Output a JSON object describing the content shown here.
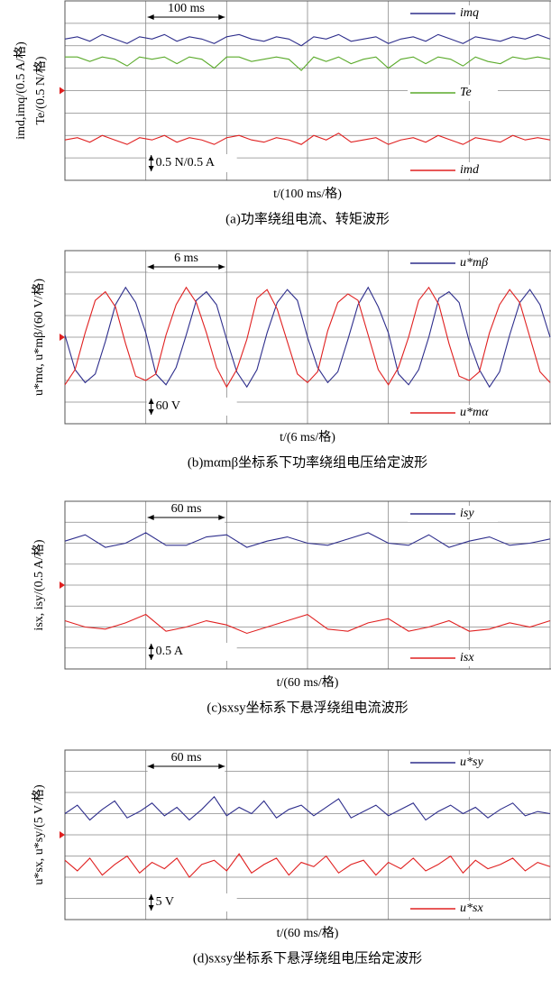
{
  "chart_data": [
    {
      "type": "line",
      "ylabel": [
        "imd,imq/(0.5 A/格)",
        "Te/(0.5 N/格)"
      ],
      "xlabel": "t/(100 ms/格)",
      "caption": "(a)功率绕组电流、转矩波形",
      "time_scale": "100 ms",
      "amplitude_scale": "0.5 N/0.5 A",
      "xlim": [
        0,
        6
      ],
      "ylim": [
        0,
        8
      ],
      "xticks": [
        0,
        1,
        2,
        3,
        4,
        5,
        6
      ],
      "yticks": [
        0,
        1,
        2,
        3,
        4,
        5,
        6,
        7,
        8
      ],
      "grid": true,
      "series": [
        {
          "name": "imq",
          "color": "#2e2e8c",
          "values": [
            6.3,
            6.4,
            6.2,
            6.5,
            6.3,
            6.1,
            6.4,
            6.3,
            6.5,
            6.2,
            6.4,
            6.3,
            6.1,
            6.4,
            6.5,
            6.3,
            6.2,
            6.4,
            6.3,
            6.0,
            6.4,
            6.3,
            6.5,
            6.2,
            6.3,
            6.4,
            6.1,
            6.3,
            6.4,
            6.2,
            6.5,
            6.3,
            6.1,
            6.4,
            6.3,
            6.2,
            6.4,
            6.3,
            6.5,
            6.3
          ]
        },
        {
          "name": "Te",
          "color": "#5aaa2a",
          "values": [
            5.5,
            5.5,
            5.3,
            5.5,
            5.4,
            5.1,
            5.5,
            5.4,
            5.5,
            5.2,
            5.5,
            5.4,
            5.0,
            5.5,
            5.5,
            5.3,
            5.4,
            5.5,
            5.4,
            4.9,
            5.5,
            5.3,
            5.5,
            5.2,
            5.4,
            5.5,
            5.0,
            5.4,
            5.5,
            5.2,
            5.5,
            5.4,
            5.1,
            5.5,
            5.3,
            5.2,
            5.5,
            5.4,
            5.5,
            5.4
          ]
        },
        {
          "name": "imd",
          "color": "#e02020",
          "values": [
            1.8,
            1.9,
            1.7,
            2.0,
            1.8,
            1.6,
            1.9,
            1.8,
            2.0,
            1.7,
            1.9,
            1.8,
            1.6,
            1.9,
            2.0,
            1.8,
            1.7,
            1.9,
            1.8,
            1.6,
            2.0,
            1.8,
            2.1,
            1.7,
            1.8,
            1.9,
            1.6,
            1.8,
            1.9,
            1.7,
            2.0,
            1.8,
            1.6,
            1.9,
            1.8,
            1.7,
            2.0,
            1.8,
            1.9,
            1.8
          ]
        }
      ]
    },
    {
      "type": "line",
      "ylabel": [
        "u*mα, u*mβ/(60 V/格)"
      ],
      "xlabel": "t/(6 ms/格)",
      "caption": "(b)mαmβ坐标系下功率绕组电压给定波形",
      "time_scale": "6 ms",
      "amplitude_scale": "60 V",
      "xlim": [
        0,
        6
      ],
      "ylim": [
        -4,
        4
      ],
      "xticks": [
        0,
        1,
        2,
        3,
        4,
        5,
        6
      ],
      "yticks": [
        -4,
        -3,
        -2,
        -1,
        0,
        1,
        2,
        3,
        4
      ],
      "grid": true,
      "series": [
        {
          "name": "u*mβ",
          "color": "#2e2e8c",
          "values": [
            0.1,
            -1.5,
            -2.1,
            -1.7,
            -0.2,
            1.5,
            2.3,
            1.6,
            0.2,
            -1.7,
            -2.2,
            -1.4,
            0.1,
            1.7,
            2.1,
            1.5,
            -0.1,
            -1.6,
            -2.3,
            -1.5,
            0.2,
            1.6,
            2.2,
            1.7,
            0.0,
            -1.4,
            -2.1,
            -1.6,
            -0.1,
            1.5,
            2.3,
            1.4,
            0.2,
            -1.7,
            -2.2,
            -1.5,
            0.0,
            1.8,
            2.1,
            1.6,
            -0.2,
            -1.5,
            -2.3,
            -1.6,
            0.1,
            1.6,
            2.2,
            1.5,
            0.0
          ]
        },
        {
          "name": "u*mα",
          "color": "#e02020",
          "values": [
            -2.2,
            -1.5,
            0.2,
            1.7,
            2.1,
            1.4,
            -0.3,
            -1.8,
            -2.0,
            -1.7,
            0.1,
            1.5,
            2.3,
            1.6,
            0.2,
            -1.4,
            -2.3,
            -1.5,
            -0.1,
            1.8,
            2.2,
            1.3,
            -0.2,
            -1.7,
            -2.1,
            -1.6,
            0.3,
            1.6,
            2.0,
            1.7,
            0.1,
            -1.5,
            -2.2,
            -1.4,
            0.0,
            1.7,
            2.3,
            1.5,
            -0.3,
            -1.8,
            -2.0,
            -1.6,
            0.2,
            1.5,
            2.2,
            1.6,
            0.0,
            -1.6,
            -2.1
          ]
        }
      ]
    },
    {
      "type": "line",
      "ylabel": [
        "isx, isy/(0.5 A/格)"
      ],
      "xlabel": "t/(60 ms/格)",
      "caption": "(c)sxsy坐标系下悬浮绕组电流波形",
      "time_scale": "60 ms",
      "amplitude_scale": "0.5 A",
      "xlim": [
        0,
        6
      ],
      "ylim": [
        0,
        8
      ],
      "xticks": [
        0,
        1,
        2,
        3,
        4,
        5,
        6
      ],
      "yticks": [
        0,
        1,
        2,
        3,
        4,
        5,
        6,
        7,
        8
      ],
      "grid": true,
      "series": [
        {
          "name": "isy",
          "color": "#2e2e8c",
          "values": [
            6.1,
            6.4,
            5.8,
            6.0,
            6.5,
            5.9,
            5.9,
            6.3,
            6.4,
            5.8,
            6.1,
            6.3,
            6.0,
            5.9,
            6.2,
            6.5,
            6.0,
            5.9,
            6.4,
            5.8,
            6.1,
            6.3,
            5.9,
            6.0,
            6.2
          ]
        },
        {
          "name": "isx",
          "color": "#e02020",
          "values": [
            2.3,
            2.0,
            1.9,
            2.2,
            2.6,
            1.8,
            2.0,
            2.3,
            2.1,
            1.7,
            2.0,
            2.3,
            2.6,
            1.9,
            1.8,
            2.2,
            2.4,
            1.8,
            2.0,
            2.3,
            1.8,
            1.9,
            2.2,
            2.0,
            2.3
          ]
        }
      ]
    },
    {
      "type": "line",
      "ylabel": [
        "u*sx, u*sy/(5 V/格)"
      ],
      "xlabel": "t/(60 ms/格)",
      "caption": "(d)sxsy坐标系下悬浮绕组电压给定波形",
      "time_scale": "60 ms",
      "amplitude_scale": "5 V",
      "xlim": [
        0,
        6
      ],
      "ylim": [
        0,
        8
      ],
      "xticks": [
        0,
        1,
        2,
        3,
        4,
        5,
        6
      ],
      "yticks": [
        0,
        1,
        2,
        3,
        4,
        5,
        6,
        7,
        8
      ],
      "grid": true,
      "series": [
        {
          "name": "u*sy",
          "color": "#2e2e8c",
          "values": [
            5.0,
            5.4,
            4.7,
            5.2,
            5.6,
            4.8,
            5.1,
            5.5,
            4.9,
            5.3,
            4.7,
            5.2,
            5.8,
            4.9,
            5.3,
            5.0,
            5.6,
            4.8,
            5.2,
            5.4,
            4.9,
            5.3,
            5.7,
            4.8,
            5.1,
            5.4,
            4.9,
            5.2,
            5.5,
            4.7,
            5.1,
            5.4,
            5.0,
            5.3,
            4.8,
            5.2,
            5.5,
            4.9,
            5.1,
            5.0
          ]
        },
        {
          "name": "u*sx",
          "color": "#e02020",
          "values": [
            2.8,
            2.3,
            2.9,
            2.1,
            2.6,
            3.0,
            2.2,
            2.7,
            2.4,
            2.9,
            2.0,
            2.6,
            2.8,
            2.3,
            3.1,
            2.2,
            2.6,
            2.9,
            2.1,
            2.7,
            2.5,
            3.0,
            2.2,
            2.6,
            2.8,
            2.1,
            2.7,
            2.4,
            2.9,
            2.3,
            2.6,
            3.0,
            2.2,
            2.8,
            2.4,
            2.6,
            2.9,
            2.3,
            2.7,
            2.5
          ]
        }
      ]
    }
  ]
}
